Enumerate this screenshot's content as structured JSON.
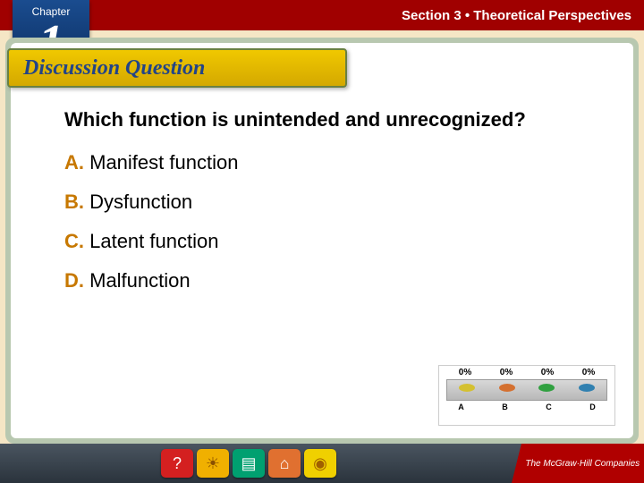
{
  "header": {
    "section_text": "Section 3 • Theoretical Perspectives",
    "section_color": "#a00000"
  },
  "chapter": {
    "label": "Chapter",
    "number": "1",
    "bg_top": "#1a4c8f",
    "bg_bottom": "#0a2a5a"
  },
  "banner": {
    "title": "Discussion Question",
    "bg_top": "#f0c800",
    "bg_bottom": "#d4a800",
    "text_color": "#224488"
  },
  "question": {
    "text": "Which function is unintended and unrecognized?",
    "fontsize": 22
  },
  "options": [
    {
      "letter": "A.",
      "text": " Manifest function"
    },
    {
      "letter": "B.",
      "text": " Dysfunction"
    },
    {
      "letter": "C.",
      "text": " Latent function"
    },
    {
      "letter": "D.",
      "text": " Malfunction"
    }
  ],
  "option_letter_color": "#c77800",
  "chart": {
    "type": "bar",
    "percents": [
      "0%",
      "0%",
      "0%",
      "0%"
    ],
    "labels": [
      "A",
      "B",
      "C",
      "D"
    ],
    "dot_colors": [
      "#d4c030",
      "#d47030",
      "#30a040",
      "#3080b0"
    ],
    "stage_color": "#c0c0c0"
  },
  "footer": {
    "buttons": [
      {
        "name": "help",
        "glyph": "?",
        "class": "btn-help",
        "bg": "#d42020"
      },
      {
        "name": "sun",
        "glyph": "☀",
        "class": "btn-sun",
        "bg": "#f0b000"
      },
      {
        "name": "book",
        "glyph": "▤",
        "class": "btn-book",
        "bg": "#00a070"
      },
      {
        "name": "home",
        "glyph": "⌂",
        "class": "btn-home",
        "bg": "#e07030"
      },
      {
        "name": "disc",
        "glyph": "◉",
        "class": "btn-disc",
        "bg": "#f0d000"
      }
    ],
    "logo_text": "The McGraw·Hill Companies",
    "logo_bg": "#b00000"
  },
  "frame": {
    "outer_bg": "#b8c8b0",
    "inner_bg": "#ffffff"
  },
  "page_bg": "#f5e6c5"
}
